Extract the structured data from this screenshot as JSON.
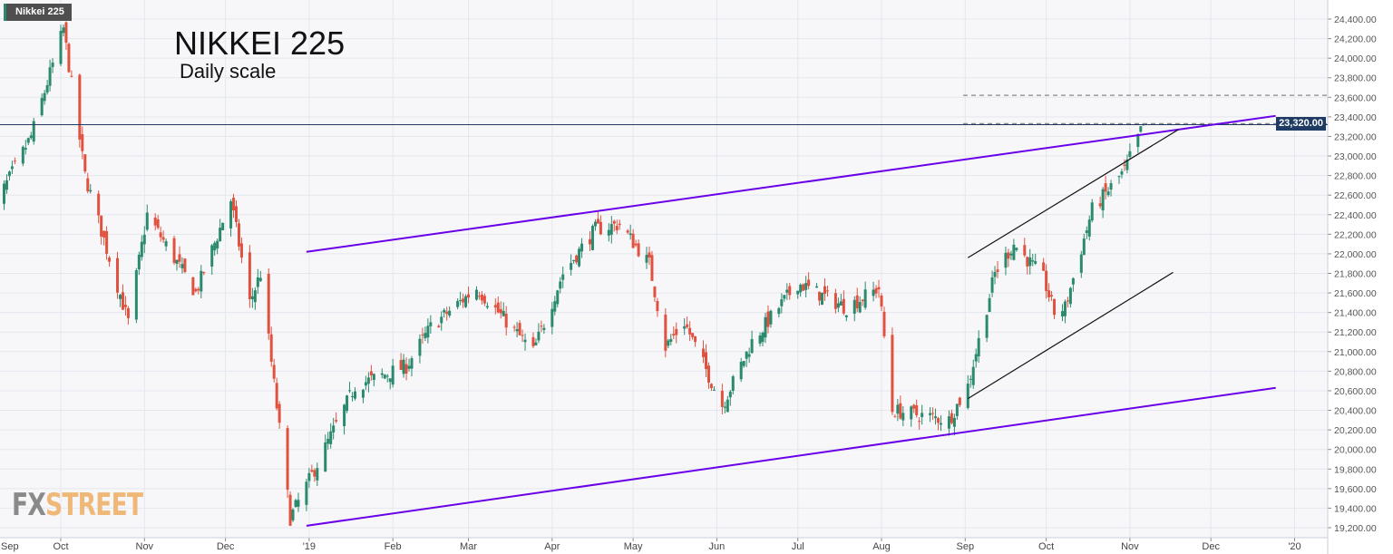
{
  "header": {
    "symbol_label": "Nikkei 225",
    "title": "NIKKEI 225",
    "subtitle": "Daily scale"
  },
  "logo": {
    "fx": "FX",
    "street": "STREET"
  },
  "current_price_label": "23,320.00",
  "colors": {
    "up": "#2b8a6e",
    "down": "#e0523f",
    "channel": "#6a00e8",
    "trendline": "#111111",
    "price_line": "#1f3b63",
    "grid": "#e4e7ee",
    "background": "#f7f7f9"
  },
  "chart_data": {
    "type": "candlestick",
    "title": "NIKKEI 225",
    "subtitle": "Daily scale",
    "x_range": [
      "2018-09-05",
      "2020-01-13"
    ],
    "ylim": [
      19200,
      24400
    ],
    "grid": true,
    "y_ticks": [
      "19,200.00",
      "19,400.00",
      "19,600.00",
      "19,800.00",
      "20,000.00",
      "20,200.00",
      "20,400.00",
      "20,600.00",
      "20,800.00",
      "21,000.00",
      "21,200.00",
      "21,400.00",
      "21,600.00",
      "21,800.00",
      "22,000.00",
      "22,200.00",
      "22,400.00",
      "22,600.00",
      "22,800.00",
      "23,000.00",
      "23,200.00",
      "23,400.00",
      "23,600.00",
      "23,800.00",
      "24,000.00",
      "24,200.00",
      "24,400.00"
    ],
    "x_ticks": [
      {
        "date": "2018-09-01",
        "label": "Sep"
      },
      {
        "date": "2018-10-01",
        "label": "Oct"
      },
      {
        "date": "2018-11-01",
        "label": "Nov"
      },
      {
        "date": "2018-12-01",
        "label": "Dec"
      },
      {
        "date": "2019-01-01",
        "label": "'19"
      },
      {
        "date": "2019-02-01",
        "label": "Feb"
      },
      {
        "date": "2019-03-01",
        "label": "Mar"
      },
      {
        "date": "2019-04-01",
        "label": "Apr"
      },
      {
        "date": "2019-05-01",
        "label": "May"
      },
      {
        "date": "2019-06-01",
        "label": "Jun"
      },
      {
        "date": "2019-07-01",
        "label": "Jul"
      },
      {
        "date": "2019-08-01",
        "label": "Aug"
      },
      {
        "date": "2019-09-01",
        "label": "Sep"
      },
      {
        "date": "2019-10-01",
        "label": "Oct"
      },
      {
        "date": "2019-11-01",
        "label": "Nov"
      },
      {
        "date": "2019-12-01",
        "label": "Dec"
      },
      {
        "date": "2020-01-01",
        "label": "'20"
      }
    ],
    "close_path": [
      [
        "2018-09-05",
        22400
      ],
      [
        "2018-09-20",
        23200
      ],
      [
        "2018-10-02",
        24300
      ],
      [
        "2018-10-10",
        22800
      ],
      [
        "2018-10-26",
        21300
      ],
      [
        "2018-11-02",
        22400
      ],
      [
        "2018-11-20",
        21600
      ],
      [
        "2018-12-03",
        22550
      ],
      [
        "2018-12-10",
        21500
      ],
      [
        "2018-12-14",
        21800
      ],
      [
        "2018-12-25",
        19300
      ],
      [
        "2019-01-04",
        19850
      ],
      [
        "2019-01-18",
        20650
      ],
      [
        "2019-02-06",
        20850
      ],
      [
        "2019-02-15",
        21250
      ],
      [
        "2019-03-04",
        21650
      ],
      [
        "2019-03-25",
        21000
      ],
      [
        "2019-04-05",
        21800
      ],
      [
        "2019-04-17",
        22250
      ],
      [
        "2019-04-26",
        22300
      ],
      [
        "2019-05-07",
        21900
      ],
      [
        "2019-05-13",
        21050
      ],
      [
        "2019-05-20",
        21300
      ],
      [
        "2019-06-03",
        20450
      ],
      [
        "2019-06-14",
        21100
      ],
      [
        "2019-07-01",
        21700
      ],
      [
        "2019-07-19",
        21450
      ],
      [
        "2019-07-31",
        21650
      ],
      [
        "2019-08-05",
        20400
      ],
      [
        "2019-08-26",
        20300
      ],
      [
        "2019-09-02",
        20650
      ],
      [
        "2019-09-12",
        21800
      ],
      [
        "2019-09-19",
        22100
      ],
      [
        "2019-09-30",
        21750
      ],
      [
        "2019-10-04",
        21400
      ],
      [
        "2019-10-08",
        21450
      ],
      [
        "2019-10-18",
        22450
      ],
      [
        "2019-10-30",
        22850
      ],
      [
        "2019-11-05",
        23250
      ],
      [
        "2019-11-06",
        23320
      ]
    ],
    "lines": [
      {
        "kind": "channel-upper",
        "from": [
          "2018-12-31",
          22020
        ],
        "to": [
          "2019-12-25",
          23410
        ]
      },
      {
        "kind": "channel-lower",
        "from": [
          "2018-12-31",
          19220
        ],
        "to": [
          "2019-12-25",
          20630
        ]
      },
      {
        "kind": "trend-upper",
        "from": [
          "2019-09-02",
          21960
        ],
        "to": [
          "2019-11-19",
          23270
        ]
      },
      {
        "kind": "trend-lower",
        "from": [
          "2019-09-02",
          20520
        ],
        "to": [
          "2019-11-17",
          21810
        ]
      }
    ],
    "horizontal_levels": [
      {
        "kind": "resistance-dashed",
        "value": 23620
      },
      {
        "kind": "resistance-dashed",
        "value": 23330
      },
      {
        "kind": "last-price",
        "value": 23320
      }
    ]
  }
}
